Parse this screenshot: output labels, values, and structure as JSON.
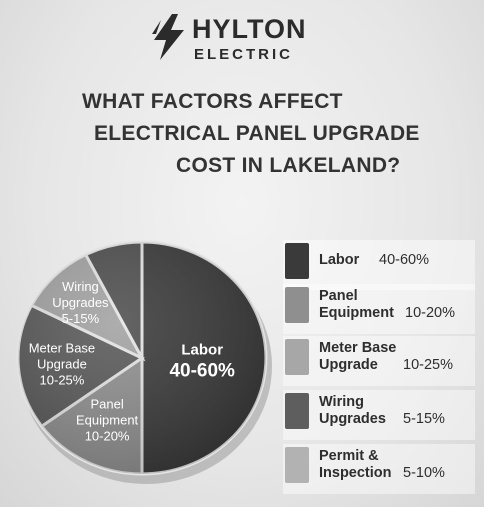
{
  "brand": {
    "name": "HYLTON",
    "sub": "ELECTRIC",
    "icon": "lightning-bolt-icon"
  },
  "title_lines": [
    "WHAT FACTORS AFFECT",
    "ELECTRICAL PANEL UPGRADE",
    "COST IN LAKELAND?"
  ],
  "colors": {
    "background": "#e8e8e8",
    "labor": "#3a3a3a",
    "panel_equipment": "#8f8f8f",
    "meter_base": "#595959",
    "wiring": "#a2a2a2",
    "permit": "#4e4e4e"
  },
  "chart_data": {
    "type": "pie",
    "slices": [
      {
        "lines": [
          "Labor"
        ],
        "range": "40-60%",
        "value": 50,
        "color": "#3a3a3a"
      },
      {
        "lines": [
          "Panel",
          "Equipment"
        ],
        "range": "10-20%",
        "value": 15,
        "color": "#8f8f8f"
      },
      {
        "lines": [
          "Meter Base",
          "Upgrade"
        ],
        "range": "10-25%",
        "value": 17.5,
        "color": "#595959"
      },
      {
        "lines": [
          "Wiring",
          "Upgrades"
        ],
        "range": "5-15%",
        "value": 10,
        "color": "#a2a2a2"
      },
      {
        "lines": [],
        "range": "",
        "value": 7.5,
        "color": "#4e4e4e"
      }
    ],
    "legend": [
      {
        "lines": [
          "Labor"
        ],
        "range": "40-60%",
        "color": "#3a3a3a"
      },
      {
        "lines": [
          "Panel",
          "Equipment"
        ],
        "range": "10-20%",
        "color": "#8f8f8f"
      },
      {
        "lines": [
          "Meter Base",
          "Upgrade"
        ],
        "range": "10-25%",
        "color": "#a7a7a7"
      },
      {
        "lines": [
          "Wiring",
          "Upgrades"
        ],
        "range": "5-15%",
        "color": "#5e5e5e"
      },
      {
        "lines": [
          "Permit &",
          "Inspection"
        ],
        "range": "5-10%",
        "color": "#b2b2b2"
      }
    ]
  }
}
